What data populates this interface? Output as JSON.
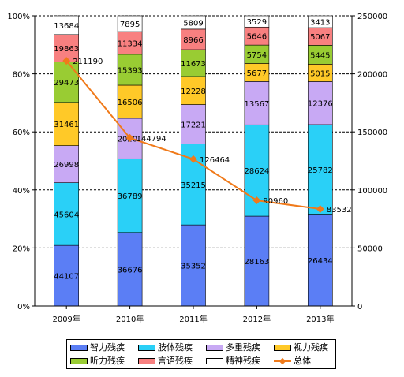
{
  "chart_data": {
    "type": "stacked-bar-with-line",
    "categories": [
      "2009年",
      "2010年",
      "2011年",
      "2012年",
      "2013年"
    ],
    "series": [
      {
        "name": "智力残疾",
        "color": "#5b7ef5",
        "values": [
          44107,
          36676,
          35352,
          28163,
          26434
        ]
      },
      {
        "name": "肢体残疾",
        "color": "#2ad0f7",
        "values": [
          45604,
          36789,
          35215,
          28624,
          25782
        ]
      },
      {
        "name": "多重残疾",
        "color": "#c8a9f4",
        "values": [
          26998,
          20201,
          17221,
          13567,
          12376
        ]
      },
      {
        "name": "视力残疾",
        "color": "#ffc928",
        "values": [
          31461,
          16506,
          12228,
          5677,
          5015
        ]
      },
      {
        "name": "听力残疾",
        "color": "#99cc33",
        "values": [
          29473,
          15393,
          11673,
          5754,
          5445
        ]
      },
      {
        "name": "言语残疾",
        "color": "#f88080",
        "values": [
          19863,
          11334,
          8966,
          5646,
          5067
        ]
      },
      {
        "name": "精神残疾",
        "color": "#ffffff",
        "values": [
          13684,
          7895,
          5809,
          3529,
          3413
        ]
      }
    ],
    "line": {
      "name": "总体",
      "color": "#f07a1a",
      "values": [
        211190,
        144794,
        126464,
        90960,
        83532
      ]
    },
    "left_axis": {
      "ticks": [
        "0%",
        "20%",
        "40%",
        "60%",
        "80%",
        "100%"
      ],
      "range": [
        0,
        100
      ]
    },
    "right_axis": {
      "ticks": [
        "0",
        "50000",
        "100000",
        "150000",
        "200000",
        "250000"
      ],
      "range": [
        0,
        250000
      ]
    },
    "grid": "dashed-horizontal",
    "legend_position": "bottom"
  }
}
